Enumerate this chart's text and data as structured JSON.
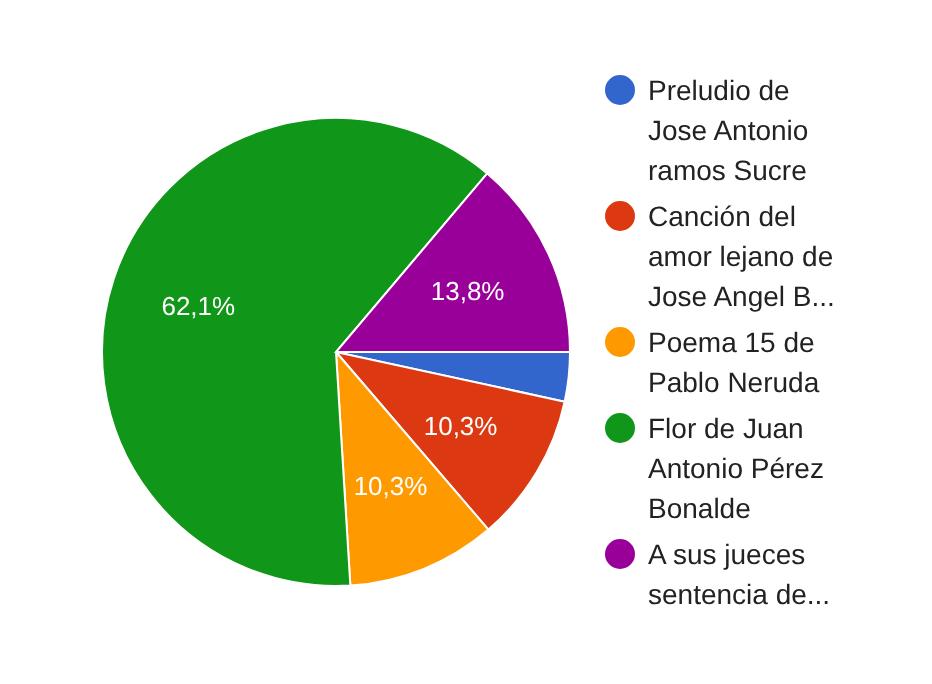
{
  "chart_data": {
    "type": "pie",
    "categories": [
      "Preludio de Jose Antonio ramos Sucre",
      "Canción del amor lejano de Jose Angel B...",
      "Poema 15 de Pablo Neruda",
      "Flor de Juan Antonio Pérez Bonalde",
      "A sus jueces sentencia de..."
    ],
    "values": [
      3.4,
      10.3,
      10.3,
      62.1,
      13.8
    ],
    "colors": [
      "#3366cc",
      "#dc3912",
      "#ff9900",
      "#109618",
      "#990099"
    ],
    "value_labels": [
      null,
      "10,3%",
      "10,3%",
      "62,1%",
      "13,8%"
    ],
    "legend": "right"
  }
}
